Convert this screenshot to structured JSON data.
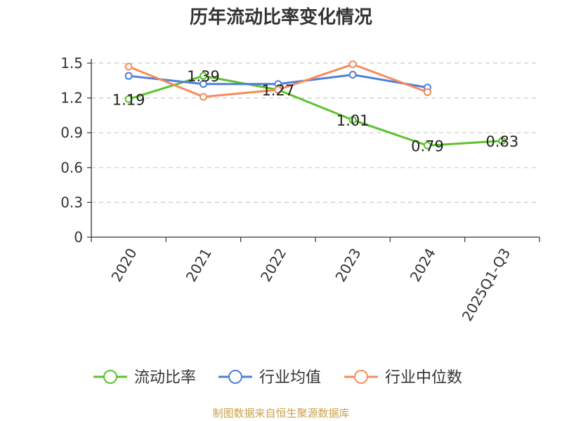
{
  "chart_data": {
    "type": "line",
    "title": "历年流动比率变化情况",
    "categories": [
      "2020",
      "2021",
      "2022",
      "2023",
      "2024",
      "2025Q1-Q3"
    ],
    "ylim": [
      0,
      1.5
    ],
    "yticks": [
      "0",
      "0.3",
      "0.6",
      "0.9",
      "1.2",
      "1.5"
    ],
    "grid": true,
    "legend_position": "bottom",
    "series": [
      {
        "name": "流动比率",
        "color": "#5cc22c",
        "values": [
          1.19,
          1.39,
          1.27,
          1.01,
          0.79,
          0.83
        ],
        "labels": [
          "1.19",
          "1.39",
          "1.27",
          "1.01",
          "0.79",
          "0.83"
        ]
      },
      {
        "name": "行业均值",
        "color": "#4f7fdb",
        "values": [
          1.39,
          1.32,
          1.32,
          1.4,
          1.29,
          null
        ]
      },
      {
        "name": "行业中位数",
        "color": "#f58c5a",
        "values": [
          1.47,
          1.21,
          1.27,
          1.49,
          1.25,
          null
        ]
      }
    ]
  },
  "source": "制图数据来自恒生聚源数据库"
}
